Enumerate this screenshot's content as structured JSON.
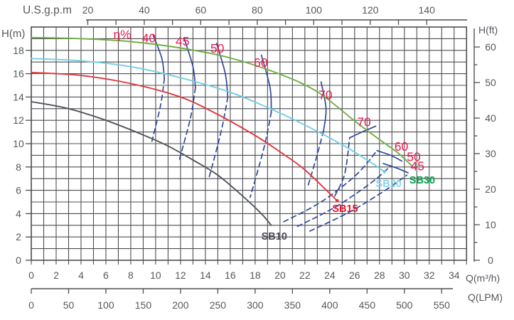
{
  "axes": {
    "top": {
      "title": "U.S.g.p.m",
      "tick_labels": [
        20,
        40,
        60,
        80,
        100,
        120,
        140
      ]
    },
    "left": {
      "title": "H(m)",
      "tick_labels": [
        0,
        2,
        4,
        6,
        8,
        10,
        12,
        14,
        16,
        18
      ]
    },
    "right": {
      "title": "H(ft)",
      "tick_labels": [
        0,
        10,
        20,
        30,
        40,
        50,
        60
      ]
    },
    "bottom_m3h": {
      "title": "Q(m³/h)",
      "tick_labels": [
        0,
        2,
        4,
        6,
        8,
        10,
        12,
        14,
        16,
        18,
        20,
        22,
        24,
        26,
        28,
        30,
        32,
        34
      ]
    },
    "bottom_lpm": {
      "title": "Q(LPM)",
      "tick_labels": [
        0,
        50,
        100,
        150,
        200,
        250,
        300,
        350,
        400,
        450,
        500,
        550
      ]
    }
  },
  "colors": {
    "grid": "#4E4F52",
    "axis_text": "#55585E",
    "contour": "#32479B",
    "eff_label": "#ED1C4F"
  },
  "chart_data": {
    "type": "line",
    "xlabel": "Q(m³/h)",
    "ylabel": "H(m)",
    "xlim": [
      0,
      35
    ],
    "ylim": [
      0,
      20
    ],
    "grid": "on, 1 m³/h by 1 m cells",
    "series": [
      {
        "name": "SB30",
        "color": "#6FAF43",
        "label_color": "#00A44F",
        "label": {
          "q": 30.4,
          "h": 6.59
        },
        "end_dot": false,
        "points": [
          [
            0,
            19.1
          ],
          [
            4,
            19.0
          ],
          [
            8,
            18.75
          ],
          [
            12,
            18.2
          ],
          [
            16,
            17.35
          ],
          [
            20,
            15.95
          ],
          [
            23,
            14.45
          ],
          [
            26,
            11.95
          ],
          [
            28,
            10.35
          ],
          [
            29.5,
            9.2
          ],
          [
            30.6,
            8.1
          ]
        ]
      },
      {
        "name": "SB20",
        "color": "#74CEE3",
        "label_color": "#8AD5E9",
        "label": {
          "q": 27.7,
          "h": 6.28
        },
        "end_dot": true,
        "points": [
          [
            0,
            17.3
          ],
          [
            4,
            17.1
          ],
          [
            8,
            16.6
          ],
          [
            12,
            15.65
          ],
          [
            16,
            14.4
          ],
          [
            19,
            13.1
          ],
          [
            22,
            11.6
          ],
          [
            25,
            9.9
          ],
          [
            27,
            8.6
          ],
          [
            28.4,
            7.6
          ]
        ]
      },
      {
        "name": "SB15",
        "color": "#DC3A3F",
        "label_color": "#E8152B",
        "label": {
          "q": 24.2,
          "h": 4.15
        },
        "end_dot": true,
        "points": [
          [
            0,
            16.1
          ],
          [
            4,
            15.85
          ],
          [
            8,
            15.15
          ],
          [
            12,
            14.0
          ],
          [
            15,
            12.5
          ],
          [
            18,
            10.7
          ],
          [
            20,
            9.3
          ],
          [
            22,
            7.75
          ],
          [
            24.6,
            5.1
          ]
        ]
      },
      {
        "name": "SB10",
        "color": "#55565C",
        "label_color": "#4A4B52",
        "label": {
          "q": 18.5,
          "h": 1.77
        },
        "end_dot": false,
        "points": [
          [
            0,
            13.6
          ],
          [
            3,
            13.0
          ],
          [
            6,
            12.0
          ],
          [
            9,
            10.75
          ],
          [
            11,
            9.8
          ],
          [
            13,
            8.6
          ],
          [
            15,
            7.3
          ],
          [
            17,
            5.5
          ],
          [
            18.5,
            4.0
          ],
          [
            19.3,
            3.0
          ]
        ]
      }
    ],
    "efficiency_contours": {
      "symbol": "η%",
      "unit": "percent efficiency",
      "solid_arcs": [
        {
          "value": 40,
          "points": [
            [
              9.8,
              19.3
            ],
            [
              10.5,
              17.3
            ],
            [
              10.7,
              15.6
            ]
          ]
        },
        {
          "value": 45,
          "points": [
            [
              12.3,
              19.0
            ],
            [
              13.0,
              16.6
            ],
            [
              13.2,
              14.8
            ]
          ]
        },
        {
          "value": 50,
          "points": [
            [
              14.9,
              18.6
            ],
            [
              15.6,
              16.0
            ],
            [
              15.8,
              14.0
            ]
          ]
        },
        {
          "value": 60,
          "points": [
            [
              18.5,
              17.6
            ],
            [
              19.2,
              14.8
            ],
            [
              19.3,
              12.7
            ]
          ]
        },
        {
          "value": 70,
          "points": [
            [
              23.3,
              15.3
            ],
            [
              23.7,
              13.0
            ],
            [
              23.5,
              11.1
            ]
          ]
        },
        {
          "value": 70,
          "points": [
            [
              25.6,
              10.5
            ],
            [
              26.6,
              11.0
            ],
            [
              27.7,
              11.5
            ]
          ]
        },
        {
          "value": 60,
          "points": [
            [
              27.8,
              9.4
            ],
            [
              28.9,
              9.0
            ],
            [
              29.8,
              8.5
            ]
          ]
        },
        {
          "value": 50,
          "points": [
            [
              28.3,
              8.3
            ],
            [
              29.4,
              7.9
            ],
            [
              30.3,
              7.5
            ]
          ]
        }
      ],
      "dashed_arcs": [
        {
          "value": 40,
          "points": [
            [
              10.7,
              15.6
            ],
            [
              10.4,
              13.3
            ],
            [
              9.7,
              10.2
            ]
          ]
        },
        {
          "value": 45,
          "points": [
            [
              13.2,
              14.8
            ],
            [
              12.8,
              12.2
            ],
            [
              11.9,
              8.6
            ]
          ]
        },
        {
          "value": 50,
          "points": [
            [
              15.8,
              14.0
            ],
            [
              15.3,
              11.2
            ],
            [
              14.3,
              7.1
            ]
          ]
        },
        {
          "value": 60,
          "points": [
            [
              19.3,
              12.7
            ],
            [
              18.7,
              9.6
            ],
            [
              17.6,
              5.4
            ]
          ]
        },
        {
          "value": 70,
          "points": [
            [
              23.5,
              11.1
            ],
            [
              22.9,
              8.7
            ],
            [
              22.2,
              6.2
            ]
          ]
        },
        {
          "value": 70,
          "points": [
            [
              24.4,
              5.5
            ],
            [
              25.2,
              7.4
            ],
            [
              25.6,
              10.5
            ]
          ]
        },
        {
          "value": 60,
          "points": [
            [
              20.3,
              3.3
            ],
            [
              23.3,
              5.0
            ],
            [
              26.1,
              7.3
            ],
            [
              27.8,
              9.4
            ]
          ]
        },
        {
          "value": 50,
          "points": [
            [
              21.4,
              2.9
            ],
            [
              24.5,
              4.6
            ],
            [
              27.4,
              6.7
            ],
            [
              28.9,
              8.1
            ]
          ]
        },
        {
          "value": 45,
          "points": [
            [
              22.4,
              2.5
            ],
            [
              25.7,
              4.2
            ],
            [
              28.6,
              6.1
            ],
            [
              30.2,
              7.3
            ]
          ]
        }
      ],
      "labels": [
        {
          "text": "η%",
          "q": 6.6,
          "h": 19.0
        },
        {
          "text": "40",
          "q": 8.9,
          "h": 18.7
        },
        {
          "text": "45",
          "q": 11.6,
          "h": 18.4
        },
        {
          "text": "50",
          "q": 14.4,
          "h": 17.8
        },
        {
          "text": "60",
          "q": 17.9,
          "h": 16.6
        },
        {
          "text": "70",
          "q": 23.1,
          "h": 13.8
        },
        {
          "text": "70",
          "q": 26.2,
          "h": 11.5
        },
        {
          "text": "60",
          "q": 29.2,
          "h": 9.4
        },
        {
          "text": "50",
          "q": 30.2,
          "h": 8.5
        },
        {
          "text": "45",
          "q": 30.5,
          "h": 7.7
        }
      ]
    }
  }
}
